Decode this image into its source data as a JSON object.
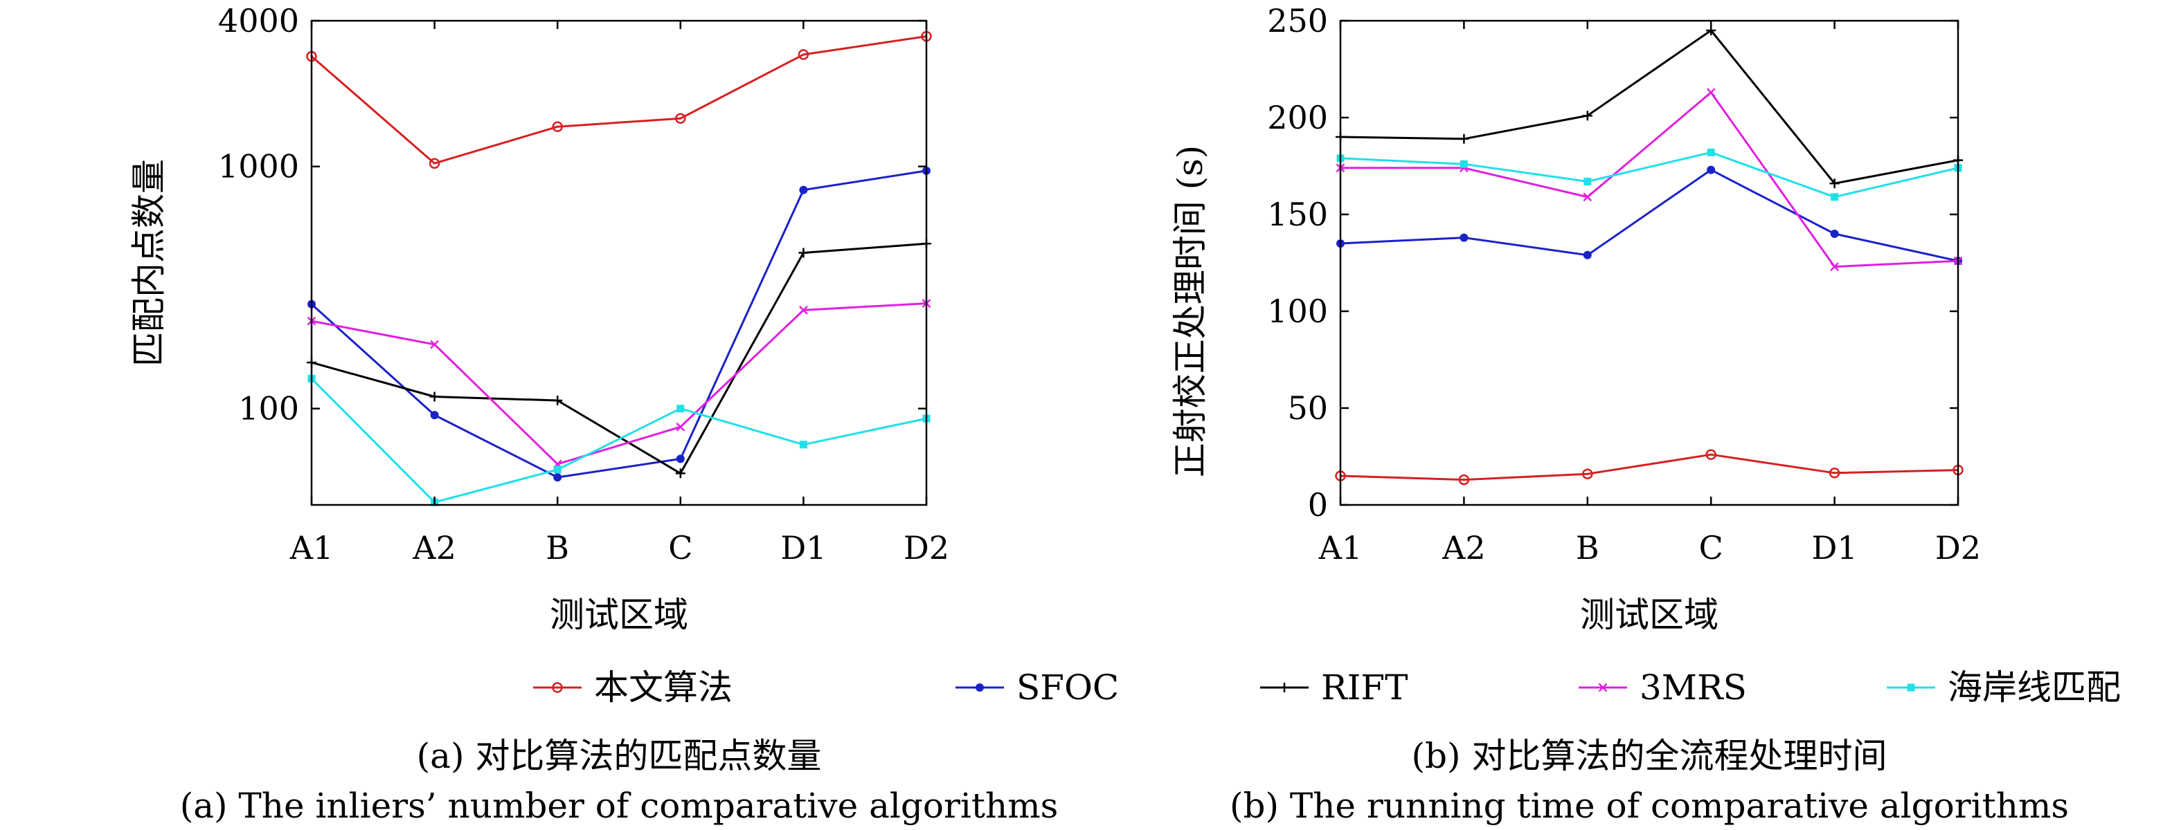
{
  "chart_data": [
    {
      "type": "line",
      "title": "",
      "caption_cn": "(a) 对比算法的匹配点数量",
      "caption_en": "(a) The inliers’ number of comparative algorithms",
      "xlabel": "测试区域",
      "ylabel": "匹配内点数量",
      "categories": [
        "A1",
        "A2",
        "B",
        "C",
        "D1",
        "D2"
      ],
      "yscale": "log",
      "ylim": [
        40,
        4000
      ],
      "yticks": [
        100,
        1000,
        4000
      ],
      "ytick_labels": [
        "100",
        "1000",
        "4000"
      ],
      "grid": false,
      "series": [
        {
          "name": "本文算法",
          "values": [
            2850,
            1030,
            1460,
            1580,
            2900,
            3450
          ]
        },
        {
          "name": "SFOC",
          "values": [
            270,
            94,
            52,
            62,
            800,
            960
          ]
        },
        {
          "name": "RIFT",
          "values": [
            155,
            112,
            108,
            54,
            440,
            480
          ]
        },
        {
          "name": "3MRS",
          "values": [
            230,
            184,
            59,
            84,
            255,
            272
          ]
        },
        {
          "name": "海岸线匹配",
          "values": [
            133,
            41,
            56,
            100,
            71,
            91
          ]
        }
      ]
    },
    {
      "type": "line",
      "title": "",
      "caption_cn": "(b) 对比算法的全流程处理时间",
      "caption_en": "(b) The running time of comparative algorithms",
      "xlabel": "测试区域",
      "ylabel": "正射校正处理时间 (s)",
      "categories": [
        "A1",
        "A2",
        "B",
        "C",
        "D1",
        "D2"
      ],
      "yscale": "linear",
      "ylim": [
        0,
        250
      ],
      "yticks": [
        0,
        50,
        100,
        150,
        200,
        250
      ],
      "ytick_labels": [
        "0",
        "50",
        "100",
        "150",
        "200",
        "250"
      ],
      "grid": false,
      "series": [
        {
          "name": "本文算法",
          "values": [
            15,
            13,
            16,
            26,
            16.5,
            18
          ]
        },
        {
          "name": "SFOC",
          "values": [
            135,
            138,
            129,
            173,
            140,
            126
          ]
        },
        {
          "name": "RIFT",
          "values": [
            190,
            189,
            201,
            245,
            166,
            178
          ]
        },
        {
          "name": "3MRS",
          "values": [
            174,
            174,
            159,
            213,
            123,
            126
          ]
        },
        {
          "name": "海岸线匹配",
          "values": [
            179,
            176,
            167,
            182,
            159,
            174
          ]
        }
      ]
    }
  ],
  "legend": {
    "placement": "bottom-center",
    "items": [
      {
        "label": "本文算法",
        "color": "#d62020",
        "marker": "circle"
      },
      {
        "label": "SFOC",
        "color": "#1a22c8",
        "marker": "dot"
      },
      {
        "label": "RIFT",
        "color": "#000000",
        "marker": "plus"
      },
      {
        "label": "3MRS",
        "color": "#e020e0",
        "marker": "cross"
      },
      {
        "label": "海岸线匹配",
        "color": "#20e0e8",
        "marker": "square"
      }
    ]
  }
}
